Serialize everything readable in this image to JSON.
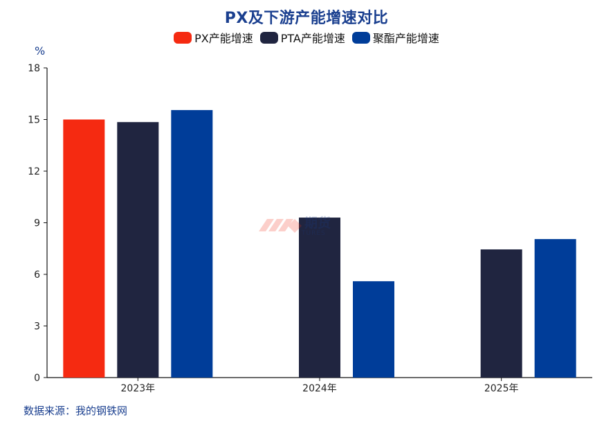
{
  "chart_data": {
    "type": "bar",
    "title": "PX及下游产能增速对比",
    "y_unit": "%",
    "categories": [
      "2023年",
      "2024年",
      "2025年"
    ],
    "series": [
      {
        "name": "PX产能增速",
        "color": "#f52a11",
        "values": [
          15.0,
          null,
          null
        ]
      },
      {
        "name": "PTA产能增速",
        "color": "#202540",
        "values": [
          14.85,
          9.3,
          7.45
        ]
      },
      {
        "name": "聚酯产能增速",
        "color": "#003d99",
        "values": [
          15.55,
          5.6,
          8.05
        ]
      }
    ],
    "ylim": [
      0,
      18
    ],
    "yticks": [
      0,
      3,
      6,
      9,
      12,
      15,
      18
    ],
    "legend_position": "top-center",
    "grid": false
  },
  "source": "数据来源：我的钢铁网",
  "watermark": {
    "text": "期货",
    "subtext": "TURES"
  }
}
